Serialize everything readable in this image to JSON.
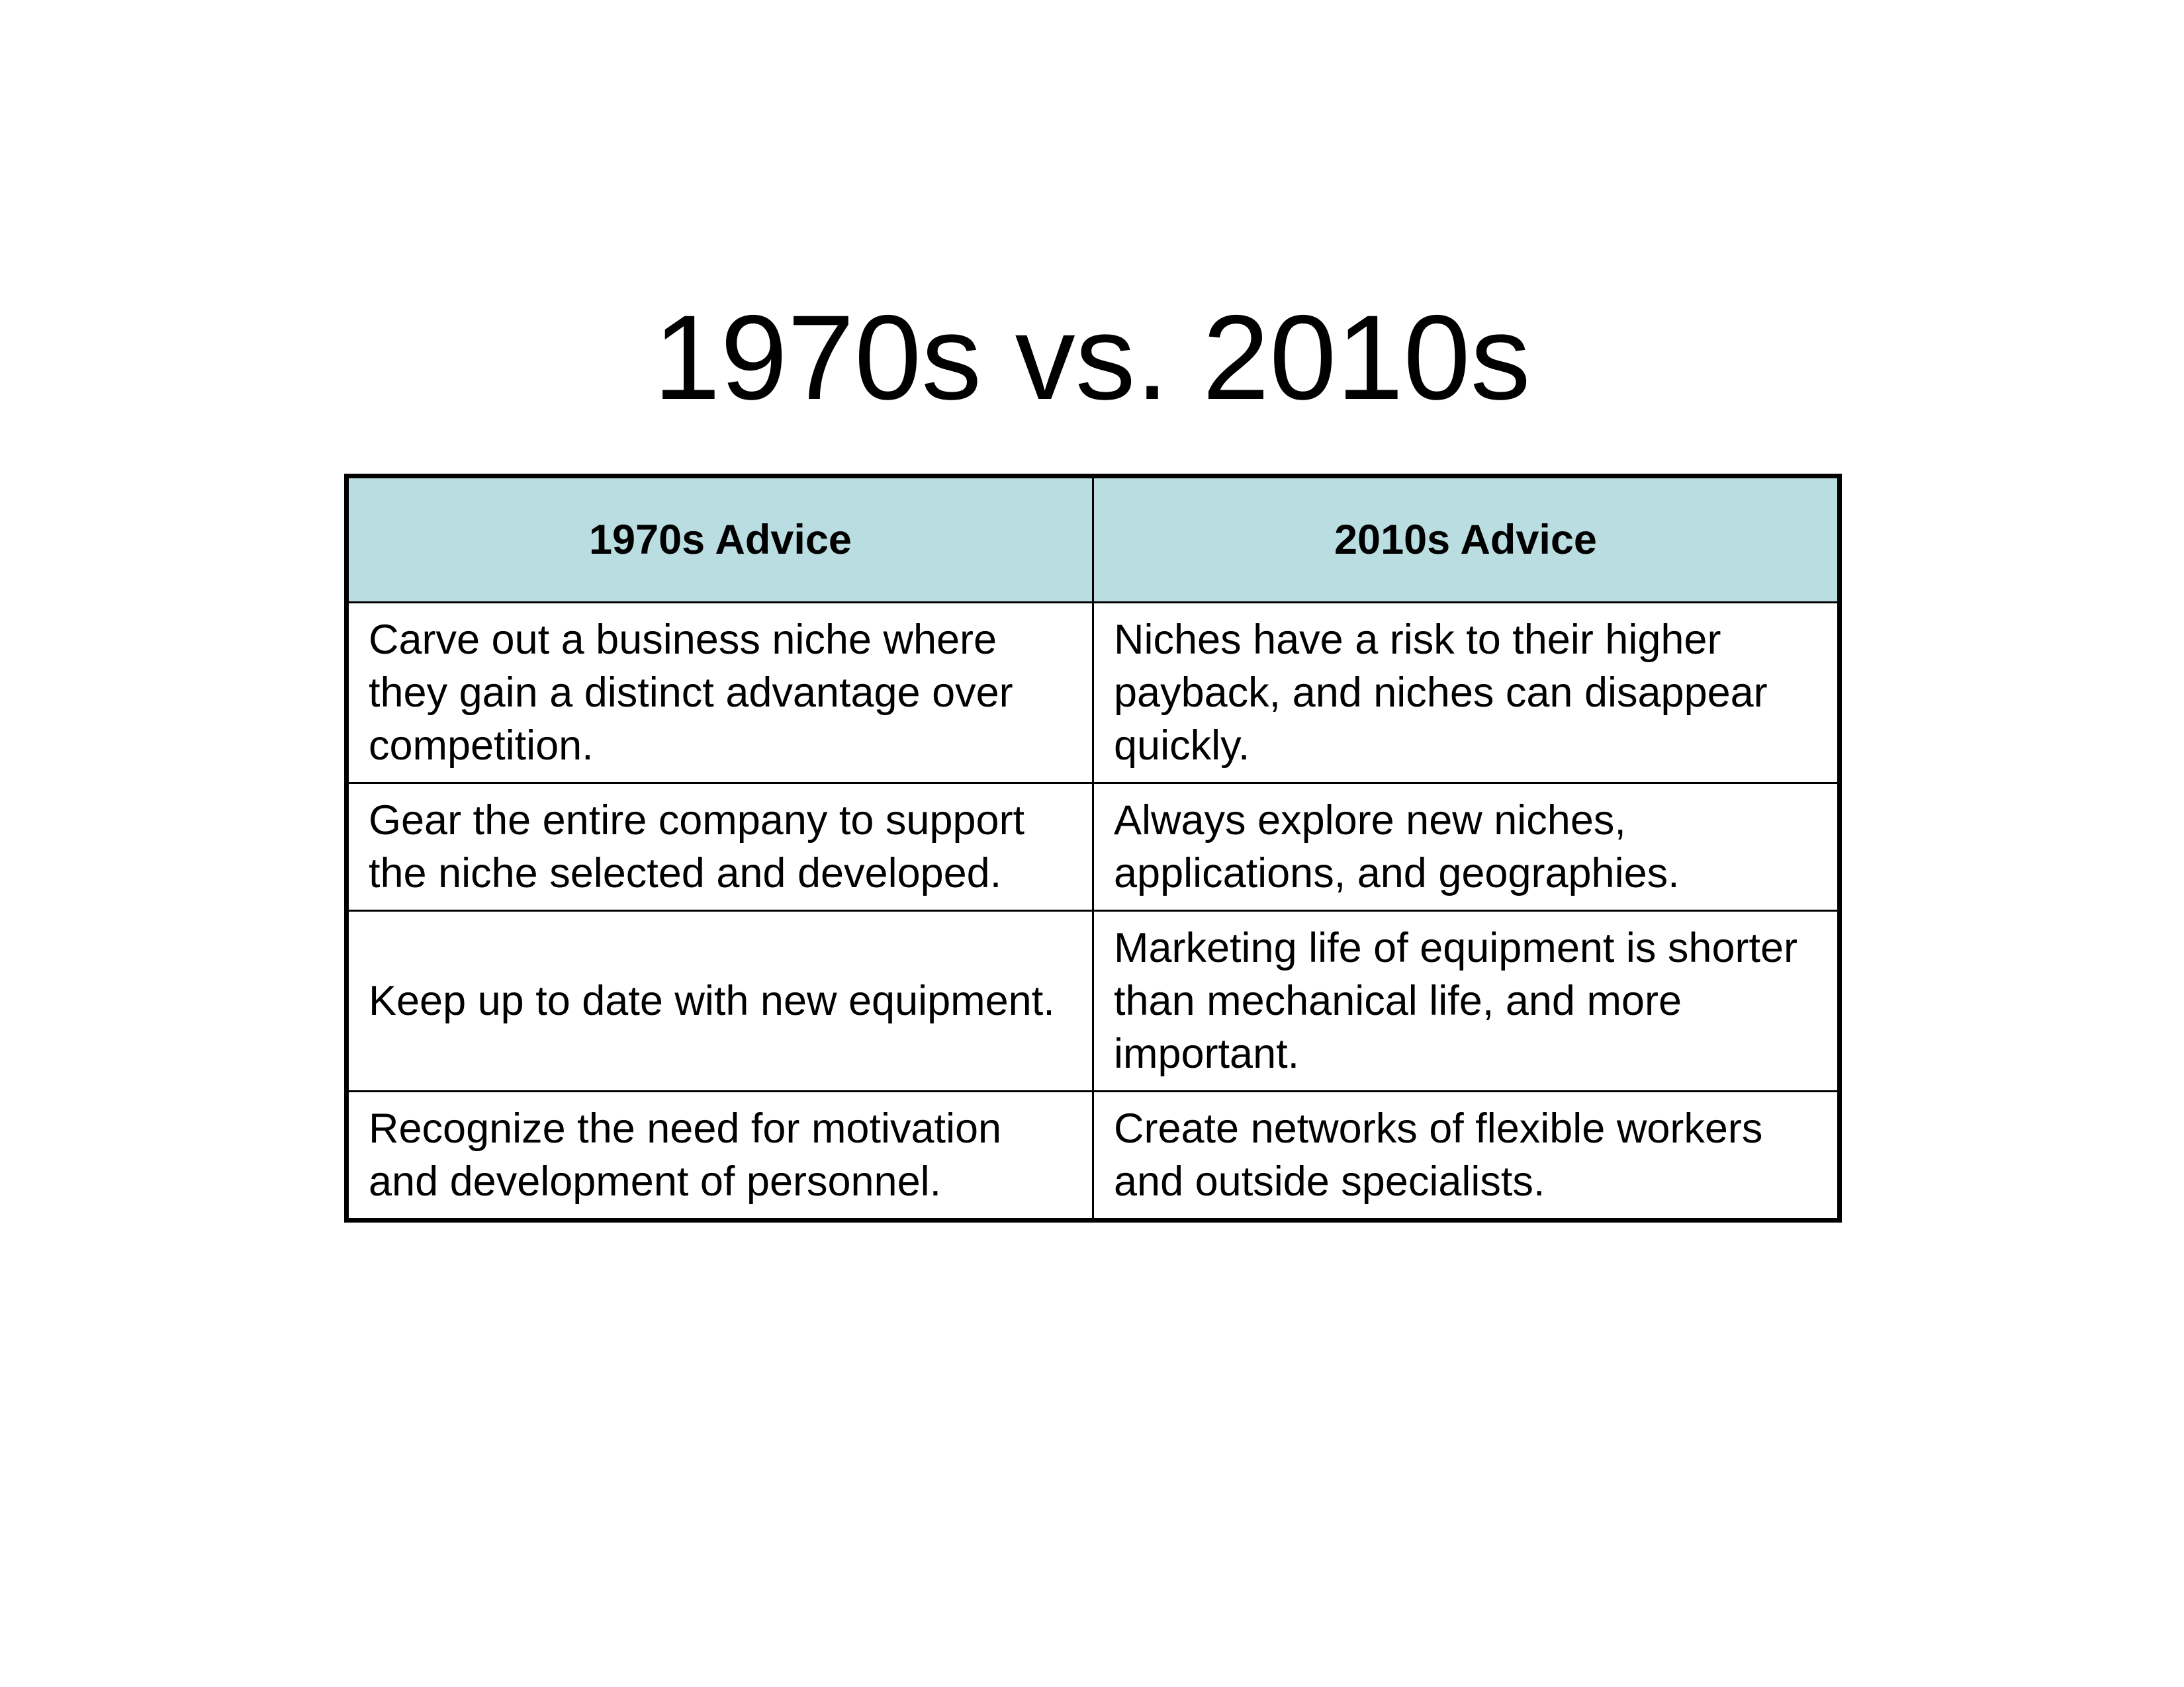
{
  "title": "1970s vs. 2010s",
  "table": {
    "header": [
      "1970s Advice",
      "2010s Advice"
    ],
    "rows": [
      [
        "Carve out a business niche where they gain a distinct advantage over competition.",
        "Niches have a risk to their higher payback, and niches can disappear quickly."
      ],
      [
        "Gear the entire company to support the niche selected and developed.",
        "Always explore new niches, applications, and geographies."
      ],
      [
        "Keep up to date with new equipment.",
        "Marketing life of equipment is shorter than mechanical life, and more important."
      ],
      [
        "Recognize the need for motivation and development of personnel.",
        "Create networks of flexible workers and outside specialists."
      ]
    ]
  }
}
